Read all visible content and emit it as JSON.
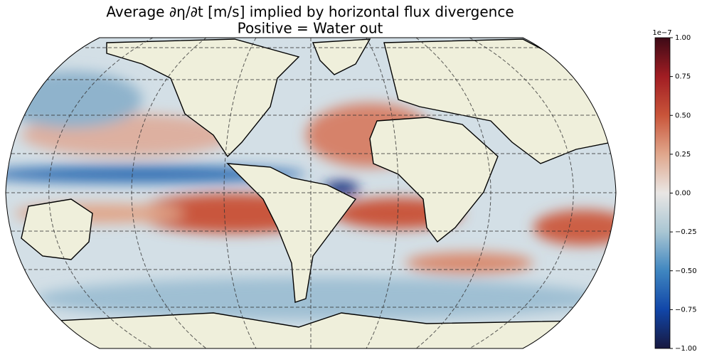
{
  "title": [
    "Average ∂η/∂t [m/s] implied by horizontal flux divergence",
    "Positive = Water out"
  ],
  "colorbar": {
    "lim": [
      -1,
      1
    ],
    "ticks": [
      {
        "value": -1,
        "label": "−1.00"
      },
      {
        "value": -0.75,
        "label": "−0.75"
      },
      {
        "value": -0.5,
        "label": "−0.50"
      },
      {
        "value": -0.25,
        "label": "−0.25"
      },
      {
        "value": 0,
        "label": "0.00"
      },
      {
        "value": 0.25,
        "label": "0.25"
      },
      {
        "value": 0.5,
        "label": "0.50"
      },
      {
        "value": 0.75,
        "label": "0.75"
      },
      {
        "value": 1,
        "label": "1.00"
      }
    ],
    "offset_label": "1e−7",
    "colormap": [
      "#17183f",
      "#1146a8",
      "#3f86c0",
      "#a9c6d3",
      "#e9e6e4",
      "#e0a78c",
      "#c9553a",
      "#a11d23",
      "#3d0a16"
    ]
  }
}
